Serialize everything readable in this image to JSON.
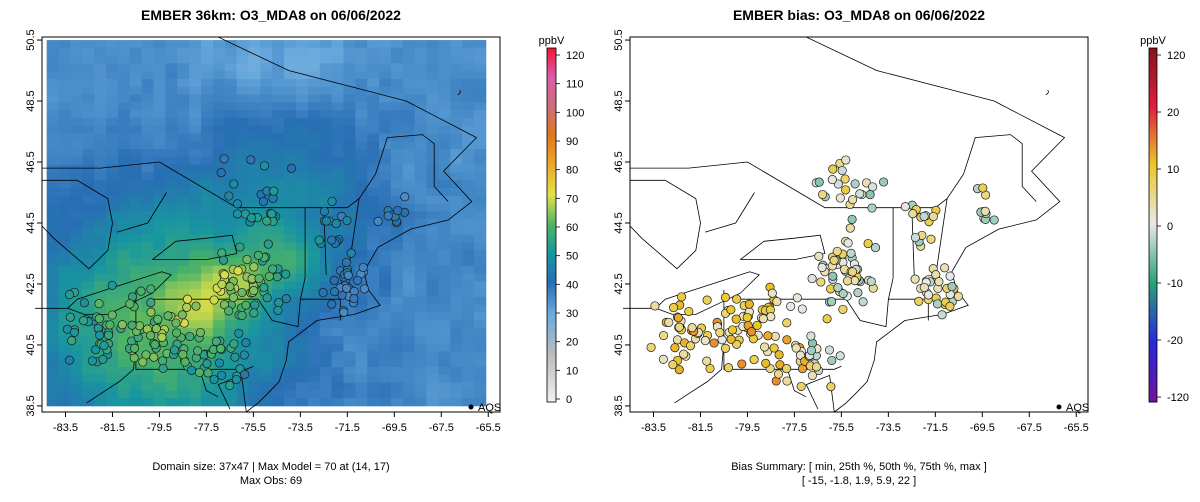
{
  "chart_data": [
    {
      "type": "heatmap",
      "title": "EMBER 36km: O3_MDA8 on 06/06/2022",
      "x_ticks": [
        "-83.5",
        "-81.5",
        "-79.5",
        "-77.5",
        "-75.5",
        "-73.5",
        "-71.5",
        "-69.5",
        "-67.5",
        "-65.5"
      ],
      "y_ticks": [
        "38.5",
        "40.5",
        "42.5",
        "44.5",
        "46.5",
        "48.5",
        "50.5"
      ],
      "xlim": [
        -84.5,
        -65.0
      ],
      "ylim": [
        38.3,
        50.6
      ],
      "colorbar": {
        "unit": "ppbV",
        "ticks": [
          "0",
          "10",
          "20",
          "30",
          "40",
          "50",
          "60",
          "70",
          "80",
          "90",
          "100",
          "110",
          "120"
        ],
        "range": [
          0,
          120
        ]
      },
      "legend": {
        "label": "AQS",
        "position": "bottom-right"
      },
      "footer": [
        "Domain size: 37x47 | Max Model = 70 at (14, 17)",
        "Max Obs: 69"
      ],
      "model_max": {
        "value": 70,
        "cell": [
          14,
          17
        ]
      },
      "domain_size": "37x47",
      "max_obs": 69
    },
    {
      "type": "scatter",
      "title": "EMBER bias: O3_MDA8 on 06/06/2022",
      "x_ticks": [
        "-83.5",
        "-81.5",
        "-79.5",
        "-77.5",
        "-75.5",
        "-73.5",
        "-71.5",
        "-69.5",
        "-67.5",
        "-65.5"
      ],
      "y_ticks": [
        "38.5",
        "40.5",
        "42.5",
        "44.5",
        "46.5",
        "48.5",
        "50.5"
      ],
      "xlim": [
        -84.5,
        -65.0
      ],
      "ylim": [
        38.3,
        50.6
      ],
      "colorbar": {
        "unit": "ppbV",
        "ticks": [
          "120",
          "20",
          "10",
          "0",
          "-10",
          "-20",
          "-120"
        ],
        "range": [
          -120,
          120
        ]
      },
      "legend": {
        "label": "AQS",
        "position": "bottom-right"
      },
      "footer": [
        "Bias Summary: [ min, 25th %, 50th %, 75th %, max ]",
        "[ -15,   -1.8,   1.9,   5.9,   22 ]"
      ],
      "bias_summary": {
        "min": -15,
        "p25": -1.8,
        "p50": 1.9,
        "p75": 5.9,
        "max": 22
      }
    }
  ]
}
